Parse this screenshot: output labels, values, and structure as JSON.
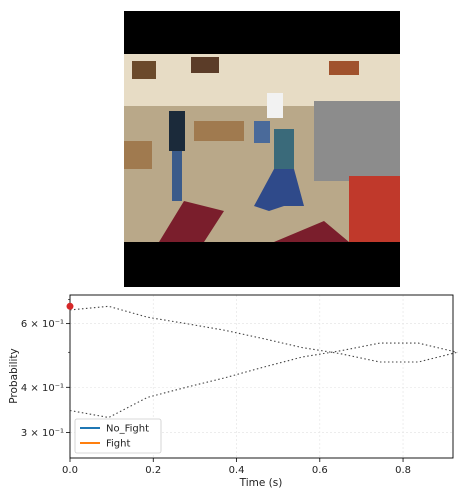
{
  "video": {
    "description_icon": "surveillance-video-frame-icon"
  },
  "chart_data": {
    "type": "line",
    "xlabel": "Time (s)",
    "ylabel": "Probability",
    "xlim": [
      0,
      0.92
    ],
    "ylim": [
      0.255,
      0.72
    ],
    "yscale": "log",
    "grid": true,
    "x_ticks": [
      0.0,
      0.2,
      0.4,
      0.6,
      0.8
    ],
    "x_tick_labels": [
      "0.0",
      "0.2",
      "0.4",
      "0.6",
      "0.8"
    ],
    "y_ticks": [
      0.3,
      0.4,
      0.6
    ],
    "y_tick_labels": [
      "3 × 10⁻¹",
      "4 × 10⁻¹",
      "6 × 10⁻¹"
    ],
    "series": [
      {
        "name": "No_Fight",
        "color": "#1f77b4",
        "x": [
          0.0,
          0.093,
          0.186,
          0.279,
          0.372,
          0.465,
          0.558,
          0.651,
          0.744,
          0.837,
          0.93
        ],
        "values": [
          0.655,
          0.67,
          0.625,
          0.6,
          0.575,
          0.545,
          0.515,
          0.495,
          0.47,
          0.47,
          0.5
        ]
      },
      {
        "name": "Fight",
        "color": "#ff7f0e",
        "x": [
          0.0,
          0.093,
          0.186,
          0.279,
          0.372,
          0.465,
          0.558,
          0.651,
          0.744,
          0.837,
          0.93
        ],
        "values": [
          0.345,
          0.33,
          0.375,
          0.4,
          0.425,
          0.455,
          0.485,
          0.505,
          0.53,
          0.53,
          0.5
        ]
      }
    ],
    "current_marker": {
      "x": 0.0,
      "y": 0.67,
      "color": "#d62728"
    },
    "legend": {
      "placement": "lower-left",
      "entries": [
        "No_Fight",
        "Fight"
      ]
    }
  }
}
